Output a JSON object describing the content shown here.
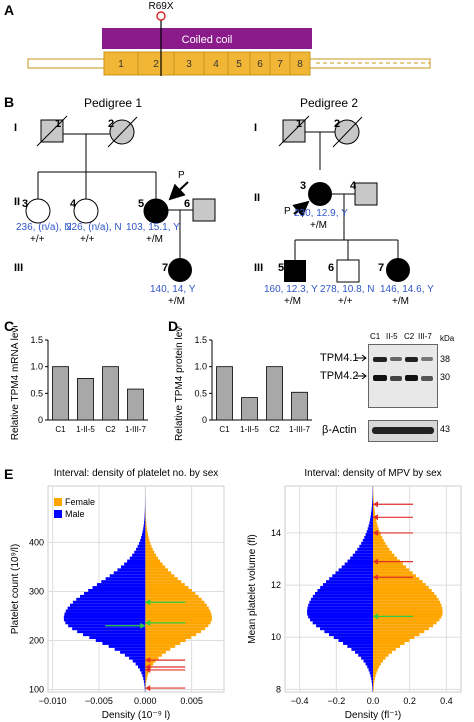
{
  "panelA": {
    "letter": "A",
    "mutation": "R69X",
    "coil_label": "Coiled coil",
    "exons": [
      "1",
      "2",
      "3",
      "4",
      "5",
      "6",
      "7",
      "8"
    ]
  },
  "panelB": {
    "letter": "B",
    "pedigree1_title": "Pedigree 1",
    "pedigree2_title": "Pedigree 2",
    "gen": [
      "I",
      "II",
      "III"
    ],
    "p1": {
      "i1": "1",
      "i2": "2",
      "ii3": "3",
      "ii4": "4",
      "ii5": "5",
      "ii6": "6",
      "iii7": "7",
      "ii3_vals": "236, (n/a), N",
      "ii3_geno": "+/+",
      "ii4_vals": "226, (n/a), N",
      "ii4_geno": "+/+",
      "ii5_vals": "103, 15.1, Y",
      "ii5_geno": "+/M",
      "iii7_vals": "140, 14, Y",
      "iii7_geno": "+/M",
      "proband": "P"
    },
    "p2": {
      "i1": "1",
      "i2": "2",
      "ii3": "3",
      "ii4": "4",
      "iii5": "5",
      "iii6": "6",
      "iii7": "7",
      "ii3_vals": "230, 12.9, Y",
      "ii3_geno": "+/M",
      "iii5_vals": "160, 12.3, Y",
      "iii5_geno": "+/M",
      "iii6_vals": "278, 10.8, N",
      "iii6_geno": "+/+",
      "iii7_vals": "146, 14.6, Y",
      "iii7_geno": "+/M",
      "proband": "P"
    }
  },
  "panelC": {
    "letter": "C"
  },
  "panelD": {
    "letter": "D",
    "blot_lanes": [
      "C1",
      "II-5",
      "C2",
      "III-7"
    ],
    "kda": "kDa",
    "bands": [
      "TPM4.1",
      "TPM4.2",
      "β-Actin"
    ],
    "markers": [
      "38",
      "30",
      "43"
    ]
  },
  "panelE": {
    "letter": "E",
    "legend": [
      "Female",
      "Male"
    ],
    "colors": {
      "female": "#ffa500",
      "male": "#0000ff",
      "arrow_red": "#e0302a",
      "arrow_green": "#2ecc40",
      "bar_grey": "#a8a8a8",
      "coil": "#8b1a8b",
      "exon": "#f2b636"
    }
  },
  "chart_data": [
    {
      "type": "bar",
      "title": "",
      "ylabel": "Relative TPM4 mRNA level",
      "categories": [
        "C1",
        "1-II-5",
        "C2",
        "1-III-7"
      ],
      "values": [
        1.0,
        0.78,
        1.0,
        0.58
      ],
      "ylim": [
        0,
        1.5
      ],
      "yticks": [
        "0",
        "0.5",
        "1.0",
        "1.5"
      ]
    },
    {
      "type": "bar",
      "title": "",
      "ylabel": "Relative TPM4 protein level",
      "categories": [
        "C1",
        "1-II-5",
        "C2",
        "1-III-7"
      ],
      "values": [
        1.0,
        0.42,
        1.0,
        0.52
      ],
      "ylim": [
        0,
        1.5
      ],
      "yticks": [
        "0",
        "0.5",
        "1.0",
        "1.5"
      ]
    },
    {
      "type": "bar",
      "title": "Interval: density of platelet no. by sex",
      "xlabel": "Density (10⁻⁹ l)",
      "ylabel": "Platelet count (10⁹/l)",
      "xticks": [
        "−0.010",
        "−0.005",
        "0.000",
        "0.005"
      ],
      "yticks": [
        "100",
        "200",
        "300",
        "400"
      ],
      "ylim": [
        95,
        515
      ],
      "xlim": [
        -0.0105,
        0.0085
      ],
      "male_peak": -0.0088,
      "female_peak": 0.0072,
      "center": 242,
      "spread": 45,
      "red_arrows": [
        103,
        140,
        146,
        160
      ],
      "green_arrows": [
        278,
        230,
        236
      ]
    },
    {
      "type": "bar",
      "title": "Interval: density of MPV by sex",
      "xlabel": "Density (fl⁻¹)",
      "ylabel": "Mean platelet volume (fl)",
      "xticks": [
        "−0.4",
        "−0.2",
        "0.0",
        "0.2",
        "0.4"
      ],
      "yticks": [
        "8",
        "10",
        "12",
        "14"
      ],
      "ylim": [
        7.9,
        15.8
      ],
      "xlim": [
        -0.48,
        0.48
      ],
      "male_peak": -0.36,
      "female_peak": 0.38,
      "center": 10.9,
      "spread": 0.95,
      "red_arrows": [
        15.1,
        14.6,
        14.0,
        12.9,
        12.3
      ],
      "green_arrows": [
        10.8
      ]
    }
  ]
}
